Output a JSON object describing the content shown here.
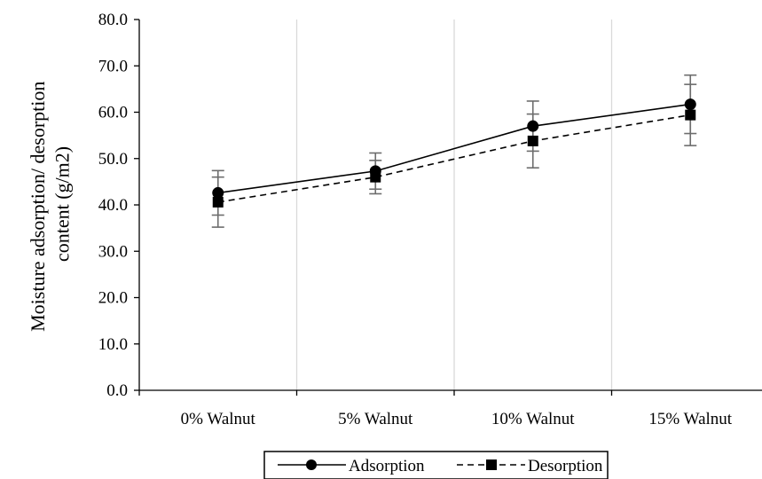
{
  "chart_data": {
    "type": "line",
    "title": "",
    "xlabel": "",
    "ylabel": "Moisture adsorption/ desorption content (g/m2)",
    "ylabel_lines": [
      "Moisture adsorption/ desorption",
      "content (g/m2)"
    ],
    "categories": [
      "0% Walnut",
      "5% Walnut",
      "10% Walnut",
      "15% Walnut"
    ],
    "ylim": [
      0,
      80
    ],
    "yticks": [
      "0.0",
      "10.0",
      "20.0",
      "30.0",
      "40.0",
      "50.0",
      "60.0",
      "70.0",
      "80.0"
    ],
    "grid": "vertical",
    "legend_position": "bottom",
    "series": [
      {
        "name": "Adsorption",
        "values": [
          42.6,
          47.3,
          57.0,
          61.7
        ],
        "error": [
          4.8,
          3.9,
          5.4,
          6.3
        ],
        "line_style": "solid",
        "marker": "circle",
        "color": "#000000"
      },
      {
        "name": "Desorption",
        "values": [
          40.6,
          46.0,
          53.8,
          59.4
        ],
        "error": [
          5.4,
          3.6,
          5.8,
          6.6
        ],
        "line_style": "dashed",
        "marker": "square",
        "color": "#000000"
      }
    ],
    "error_bar_color": "#6d6d6d",
    "grid_color": "#d9d9d9"
  }
}
